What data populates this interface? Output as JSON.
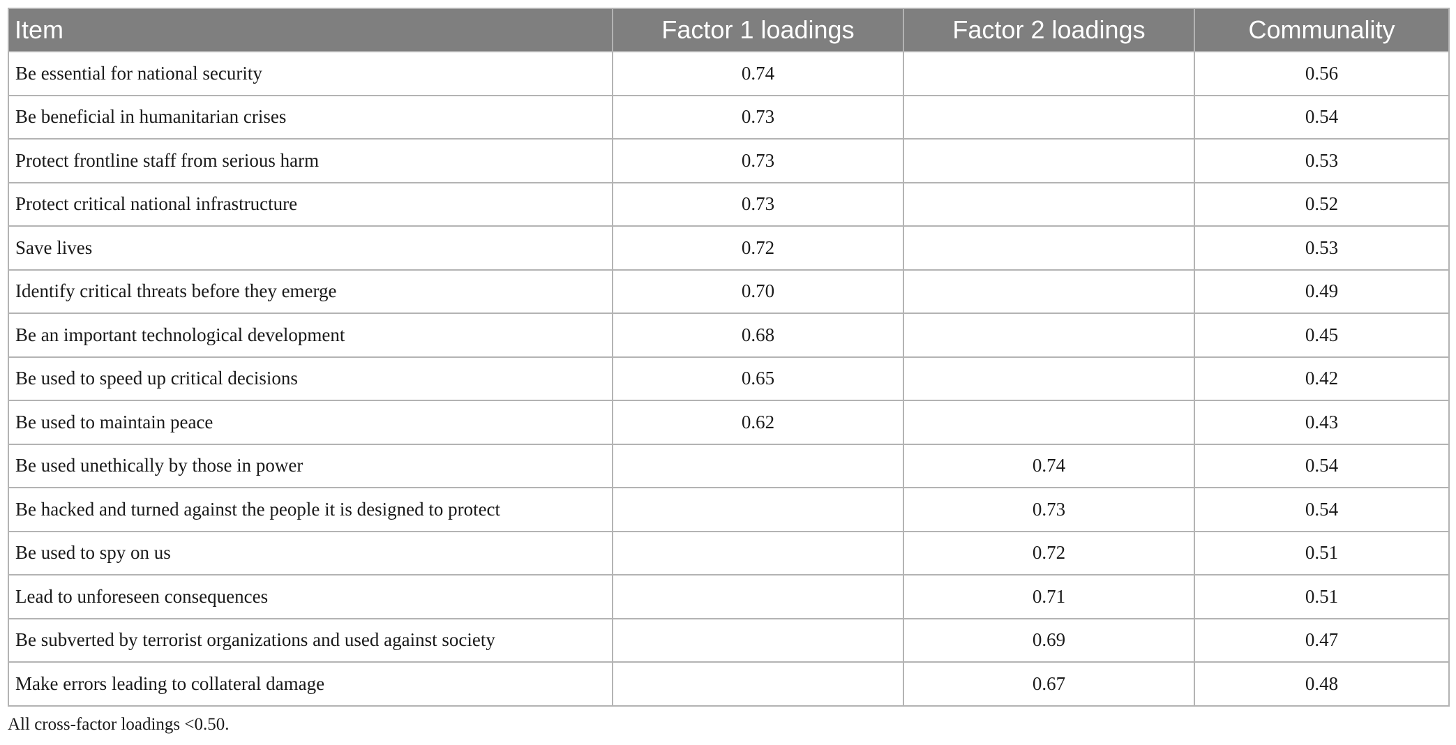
{
  "table": {
    "headers": [
      "Item",
      "Factor 1 loadings",
      "Factor 2 loadings",
      "Communality"
    ],
    "rows": [
      {
        "item": "Be essential for national security",
        "f1": "0.74",
        "f2": "",
        "communality": "0.56"
      },
      {
        "item": "Be beneficial in humanitarian crises",
        "f1": "0.73",
        "f2": "",
        "communality": "0.54"
      },
      {
        "item": "Protect frontline staff from serious harm",
        "f1": "0.73",
        "f2": "",
        "communality": "0.53"
      },
      {
        "item": "Protect critical national infrastructure",
        "f1": "0.73",
        "f2": "",
        "communality": "0.52"
      },
      {
        "item": "Save lives",
        "f1": "0.72",
        "f2": "",
        "communality": "0.53"
      },
      {
        "item": "Identify critical threats before they emerge",
        "f1": "0.70",
        "f2": "",
        "communality": "0.49"
      },
      {
        "item": "Be an important technological development",
        "f1": "0.68",
        "f2": "",
        "communality": "0.45"
      },
      {
        "item": "Be used to speed up critical decisions",
        "f1": "0.65",
        "f2": "",
        "communality": "0.42"
      },
      {
        "item": "Be used to maintain peace",
        "f1": "0.62",
        "f2": "",
        "communality": "0.43"
      },
      {
        "item": "Be used unethically by those in power",
        "f1": "",
        "f2": "0.74",
        "communality": "0.54"
      },
      {
        "item": "Be hacked and turned against the people it is designed to protect",
        "f1": "",
        "f2": "0.73",
        "communality": "0.54"
      },
      {
        "item": "Be used to spy on us",
        "f1": "",
        "f2": "0.72",
        "communality": "0.51"
      },
      {
        "item": "Lead to unforeseen consequences",
        "f1": "",
        "f2": "0.71",
        "communality": "0.51"
      },
      {
        "item": "Be subverted by terrorist organizations and used against society",
        "f1": "",
        "f2": "0.69",
        "communality": "0.47"
      },
      {
        "item": "Make errors leading to collateral damage",
        "f1": "",
        "f2": "0.67",
        "communality": "0.48"
      }
    ]
  },
  "footnote": "All cross-factor loadings <0.50.",
  "colors": {
    "header_background": "#7f7f7f",
    "header_text": "#ffffff",
    "grid_lines": "#b3b3b3",
    "body_text": "#1a1a1a"
  }
}
